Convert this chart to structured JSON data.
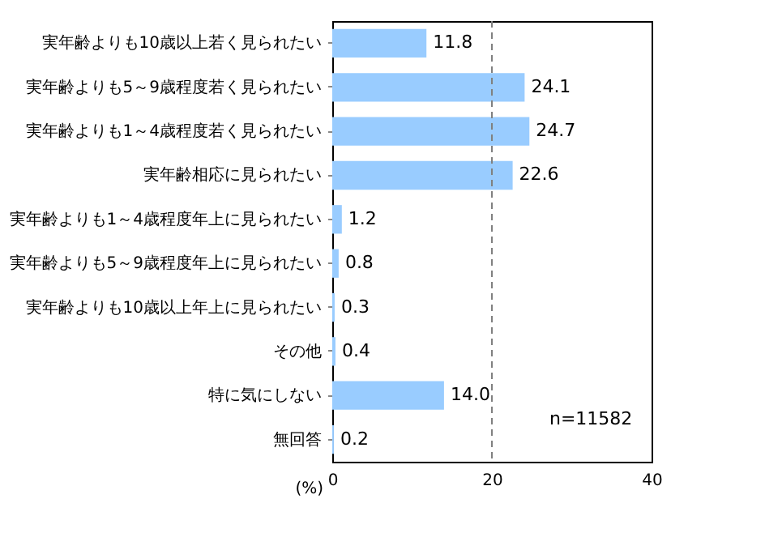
{
  "chart_data": {
    "type": "bar",
    "orientation": "horizontal",
    "xlabel": "(%)",
    "categories": [
      "実年齢よりも10歳以上若く見られたい",
      "実年齢よりも5～9歳程度若く見られたい",
      "実年齢よりも1～4歳程度若く見られたい",
      "実年齢相応に見られたい",
      "実年齢よりも1～4歳程度年上に見られたい",
      "実年齢よりも5～9歳程度年上に見られたい",
      "実年齢よりも10歳以上年上に見られたい",
      "その他",
      "特に気にしない",
      "無回答"
    ],
    "values": [
      11.8,
      24.1,
      24.7,
      22.6,
      1.2,
      0.8,
      0.3,
      0.4,
      14.0,
      0.2
    ],
    "color": "#99ccff",
    "value_labels": [
      "11.8",
      "24.1",
      "24.7",
      "22.6",
      "1.2",
      "0.8",
      "0.3",
      "0.4",
      "14.0",
      "0.2"
    ],
    "xlim": [
      0,
      40
    ],
    "xticks": [
      0,
      20,
      40
    ],
    "grid": false,
    "ref_lines": [
      {
        "axis": "x",
        "value": 20,
        "color": "#808080",
        "line_style": "dashed"
      }
    ],
    "annotations": [
      "n=11582"
    ]
  }
}
